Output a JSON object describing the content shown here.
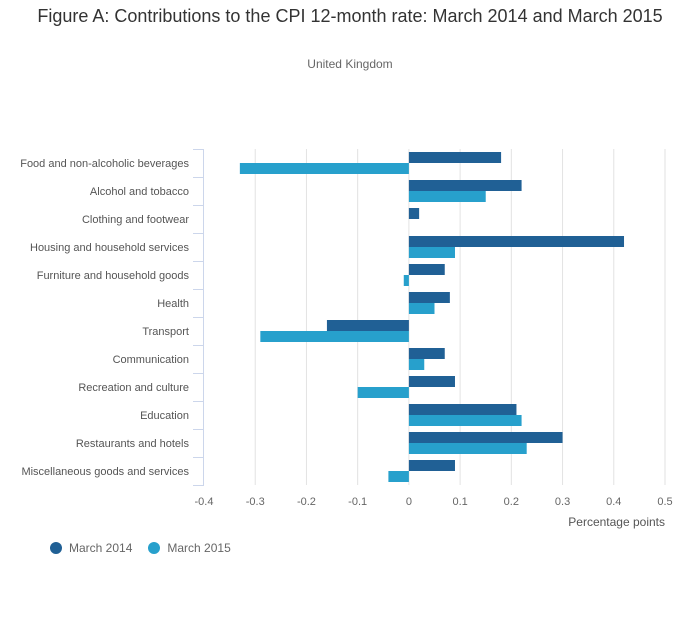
{
  "chart_data": {
    "type": "bar",
    "orientation": "horizontal",
    "title": "Figure A: Contributions to the CPI 12-month rate: March 2014 and March 2015",
    "subtitle": "United Kingdom",
    "xlabel": "Percentage points",
    "ylabel": "",
    "xlim": [
      -0.4,
      0.5
    ],
    "xticks": [
      "-0.4",
      "-0.3",
      "-0.2",
      "-0.1",
      "0",
      "0.1",
      "0.2",
      "0.3",
      "0.4",
      "0.5"
    ],
    "xtick_values": [
      -0.4,
      -0.3,
      -0.2,
      -0.1,
      0,
      0.1,
      0.2,
      0.3,
      0.4,
      0.5
    ],
    "grid": true,
    "legend_position": "bottom-left",
    "categories": [
      "Food and non-alcoholic beverages",
      "Alcohol and tobacco",
      "Clothing and footwear",
      "Housing and household services",
      "Furniture and household goods",
      "Health",
      "Transport",
      "Communication",
      "Recreation and culture",
      "Education",
      "Restaurants and hotels",
      "Miscellaneous goods and services"
    ],
    "series": [
      {
        "name": "March 2014",
        "color": "#206095",
        "values": [
          0.18,
          0.22,
          0.02,
          0.42,
          0.07,
          0.08,
          -0.16,
          0.07,
          0.09,
          0.21,
          0.3,
          0.09
        ]
      },
      {
        "name": "March 2015",
        "color": "#27a0cc",
        "values": [
          -0.33,
          0.15,
          0.0,
          0.09,
          -0.01,
          0.05,
          -0.29,
          0.03,
          -0.1,
          0.22,
          0.23,
          -0.04
        ]
      }
    ]
  },
  "colors": {
    "gridline": "#e2e2e2",
    "axis": "#ccd6eb"
  }
}
